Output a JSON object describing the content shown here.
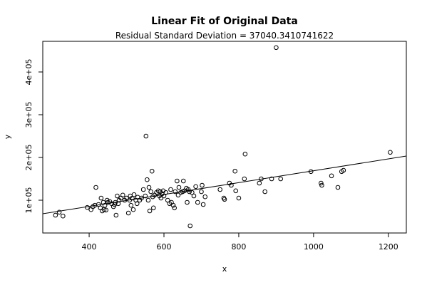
{
  "chart_data": {
    "type": "scatter",
    "title": "Linear Fit of Original Data",
    "subtitle": "Residual Standard Deviation =  37040.3410741622",
    "x_label": "x",
    "y_label": "y",
    "xlim": [
      276,
      1248
    ],
    "ylim": [
      23333,
      471667
    ],
    "xticks": [
      400,
      600,
      800,
      1000,
      1200
    ],
    "yticks": [
      {
        "value": 100000,
        "label": "1e+05"
      },
      {
        "value": 200000,
        "label": "2e+05"
      },
      {
        "value": 300000,
        "label": "3e+05"
      },
      {
        "value": 400000,
        "label": "4e+05"
      }
    ],
    "color": "#000000",
    "x": [
      310,
      320,
      330,
      395,
      405,
      410,
      415,
      418,
      425,
      430,
      432,
      435,
      438,
      440,
      442,
      445,
      448,
      450,
      455,
      460,
      465,
      468,
      470,
      472,
      475,
      478,
      480,
      485,
      490,
      495,
      500,
      505,
      508,
      510,
      512,
      515,
      518,
      520,
      525,
      528,
      530,
      535,
      540,
      545,
      550,
      552,
      555,
      558,
      560,
      562,
      565,
      568,
      570,
      572,
      575,
      580,
      585,
      588,
      590,
      592,
      595,
      598,
      600,
      605,
      610,
      615,
      618,
      620,
      625,
      628,
      630,
      635,
      638,
      640,
      645,
      650,
      652,
      655,
      660,
      662,
      665,
      668,
      670,
      675,
      680,
      685,
      690,
      700,
      702,
      705,
      710,
      750,
      760,
      762,
      775,
      780,
      790,
      792,
      800,
      815,
      817,
      855,
      860,
      870,
      888,
      900,
      912,
      993,
      1020,
      1022,
      1048,
      1065,
      1075,
      1080,
      1205
    ],
    "values": [
      65000,
      72000,
      63000,
      83000,
      78000,
      85000,
      88000,
      130000,
      90000,
      82000,
      105000,
      75000,
      95000,
      78000,
      88000,
      77000,
      100000,
      95000,
      97000,
      92000,
      85000,
      90000,
      95000,
      65000,
      110000,
      92000,
      100000,
      105000,
      112000,
      100000,
      105000,
      70000,
      100000,
      110000,
      88000,
      105000,
      78000,
      113000,
      100000,
      92000,
      107000,
      100000,
      105000,
      125000,
      110000,
      250000,
      148000,
      100000,
      130000,
      75000,
      120000,
      168000,
      108000,
      82000,
      112000,
      118000,
      122000,
      110000,
      120000,
      105000,
      115000,
      122000,
      110000,
      118000,
      100000,
      92000,
      125000,
      95000,
      88000,
      82000,
      120000,
      145000,
      112000,
      130000,
      118000,
      120000,
      145000,
      122000,
      128000,
      95000,
      125000,
      120000,
      40000,
      118000,
      110000,
      132000,
      95000,
      120000,
      135000,
      90000,
      108000,
      125000,
      105000,
      102000,
      140000,
      135000,
      168000,
      122000,
      105000,
      150000,
      208000,
      140000,
      150000,
      120000,
      150000,
      457000,
      150000,
      167000,
      140000,
      135000,
      157000,
      130000,
      167000,
      170000,
      212000
    ],
    "fit": {
      "x": [
        276,
        1248
      ],
      "y": [
        68333,
        203333
      ]
    }
  }
}
